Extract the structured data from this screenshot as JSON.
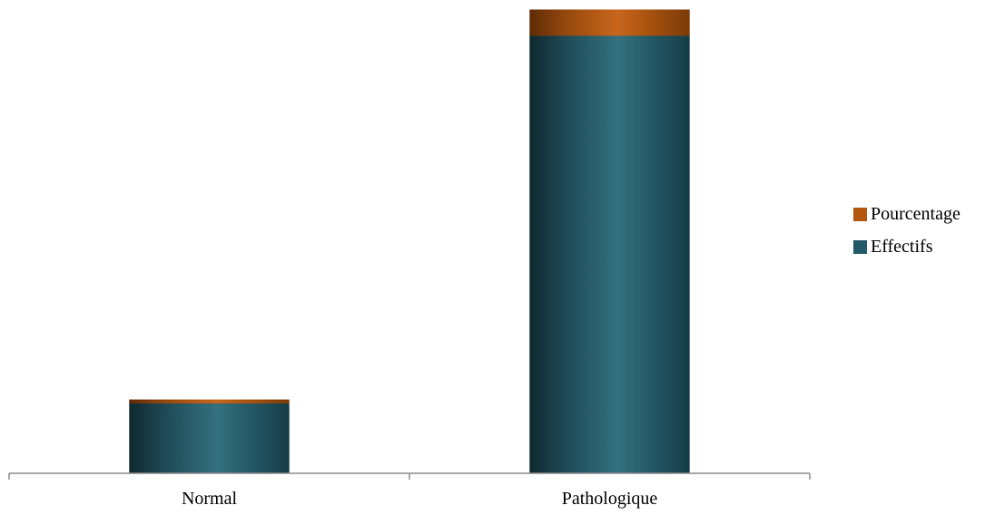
{
  "chart_data": {
    "type": "bar",
    "stacked": true,
    "categories": [
      "Normal",
      "Pathologique"
    ],
    "series": [
      {
        "name": "Effectifs",
        "values": [
          26,
          163
        ],
        "color": "#235a67"
      },
      {
        "name": "Pourcentage",
        "values": [
          1.5,
          9.8
        ],
        "color": "#b5560f"
      }
    ],
    "ylim": [
      0,
      175
    ],
    "grid": false,
    "legend_position": "right"
  },
  "legend": {
    "items": [
      {
        "label": "Pourcentage",
        "color": "#b5560f"
      },
      {
        "label": "Effectifs",
        "color": "#235a67"
      }
    ]
  }
}
